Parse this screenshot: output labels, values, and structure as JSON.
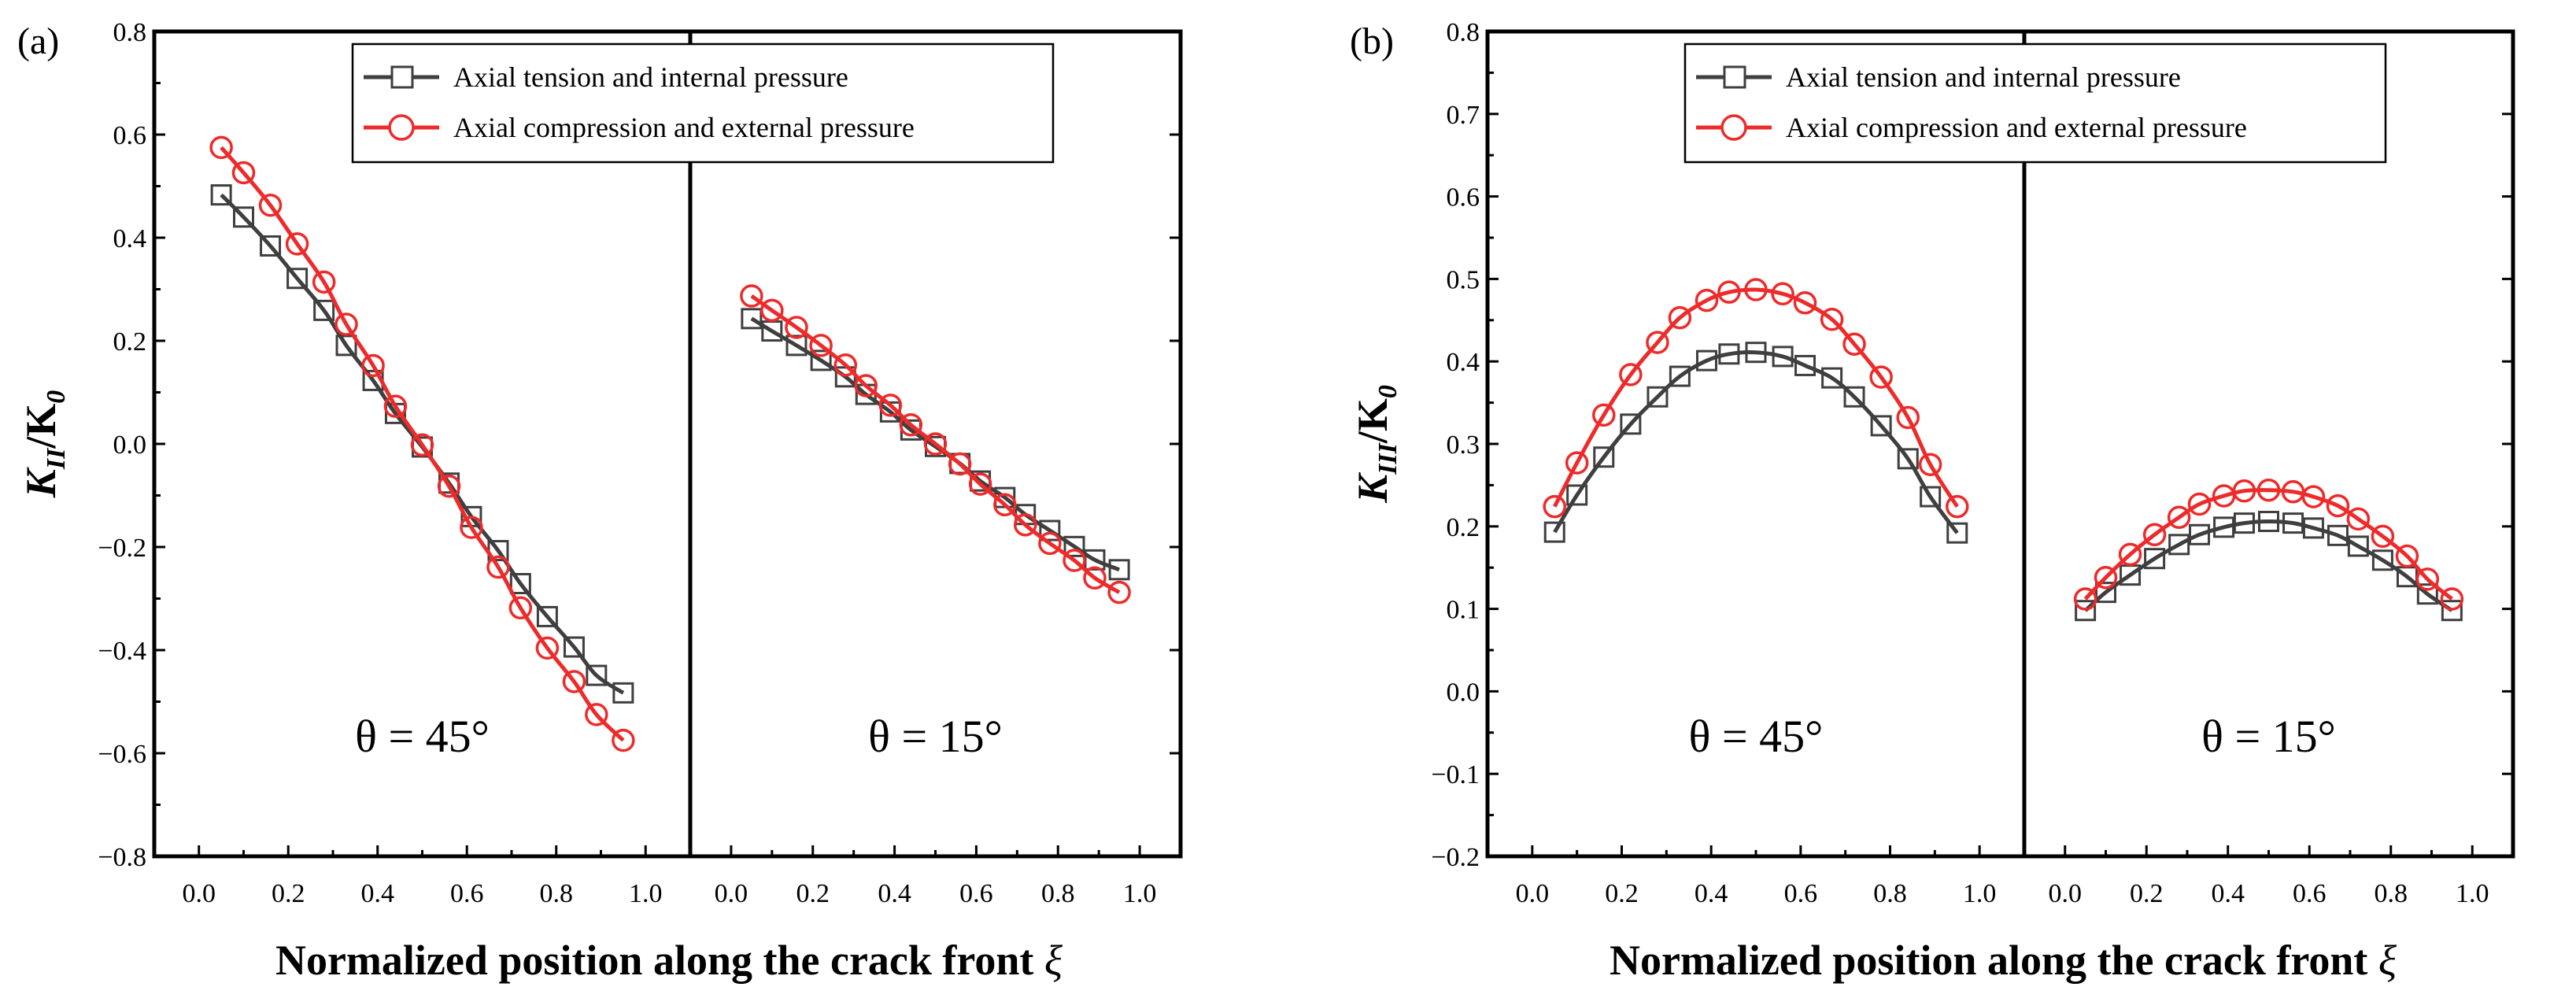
{
  "colors": {
    "series_black": "#3f3f3f",
    "series_red": "#ee2a2a",
    "axis": "#000000"
  },
  "chart_data": [
    {
      "type": "line",
      "panel_label": "(a)",
      "ylabel_main": "K",
      "ylabel_sub": "II",
      "ylabel_rest": "/K",
      "ylabel_sub2": "0",
      "xlabel": "Normalized position along the crack front",
      "xlabel_symbol": "ξ",
      "ylim": [
        -0.8,
        0.8
      ],
      "ytick_step": 0.2,
      "yticks": [
        "−0.8",
        "−0.6",
        "−0.4",
        "−0.2",
        "0.0",
        "0.2",
        "0.4",
        "0.6",
        "0.8"
      ],
      "xticks": [
        "0.0",
        "0.2",
        "0.4",
        "0.6",
        "0.8",
        "1.0"
      ],
      "legend": [
        "Axial tension and internal pressure",
        "Axial compression and external pressure"
      ],
      "legend_location": "top",
      "subplots": [
        {
          "annotation": "θ = 45°",
          "xlim": [
            -0.1,
            1.1
          ],
          "series": [
            {
              "name": "Axial tension and internal pressure",
              "marker": "square",
              "x": [
                0.05,
                0.1,
                0.16,
                0.22,
                0.28,
                0.33,
                0.39,
                0.44,
                0.5,
                0.56,
                0.61,
                0.67,
                0.72,
                0.78,
                0.84,
                0.89,
                0.95
              ],
              "y": [
                0.483,
                0.44,
                0.384,
                0.321,
                0.259,
                0.191,
                0.123,
                0.059,
                -0.006,
                -0.076,
                -0.141,
                -0.207,
                -0.271,
                -0.335,
                -0.394,
                -0.449,
                -0.483
              ]
            },
            {
              "name": "Axial compression and external pressure",
              "marker": "circle",
              "x": [
                0.05,
                0.1,
                0.16,
                0.22,
                0.28,
                0.33,
                0.39,
                0.44,
                0.5,
                0.56,
                0.61,
                0.67,
                0.72,
                0.78,
                0.84,
                0.89,
                0.95
              ],
              "y": [
                0.575,
                0.526,
                0.463,
                0.388,
                0.314,
                0.232,
                0.152,
                0.073,
                -0.002,
                -0.082,
                -0.162,
                -0.239,
                -0.318,
                -0.396,
                -0.461,
                -0.525,
                -0.575
              ]
            }
          ]
        },
        {
          "annotation": "θ = 15°",
          "xlim": [
            -0.1,
            1.1
          ],
          "series": [
            {
              "name": "Axial tension and internal pressure",
              "marker": "square",
              "x": [
                0.05,
                0.1,
                0.16,
                0.22,
                0.28,
                0.33,
                0.39,
                0.44,
                0.5,
                0.56,
                0.61,
                0.67,
                0.72,
                0.78,
                0.84,
                0.89,
                0.95
              ],
              "y": [
                0.243,
                0.219,
                0.191,
                0.162,
                0.13,
                0.096,
                0.062,
                0.027,
                -0.005,
                -0.038,
                -0.072,
                -0.104,
                -0.137,
                -0.168,
                -0.199,
                -0.225,
                -0.244
              ]
            },
            {
              "name": "Axial compression and external pressure",
              "marker": "circle",
              "x": [
                0.05,
                0.1,
                0.16,
                0.22,
                0.28,
                0.33,
                0.39,
                0.44,
                0.5,
                0.56,
                0.61,
                0.67,
                0.72,
                0.78,
                0.84,
                0.89,
                0.95
              ],
              "y": [
                0.287,
                0.259,
                0.226,
                0.191,
                0.153,
                0.113,
                0.075,
                0.037,
                0.0,
                -0.039,
                -0.078,
                -0.118,
                -0.157,
                -0.193,
                -0.226,
                -0.26,
                -0.288
              ]
            }
          ]
        }
      ]
    },
    {
      "type": "line",
      "panel_label": "(b)",
      "ylabel_main": "K",
      "ylabel_sub": "III",
      "ylabel_rest": "/K",
      "ylabel_sub2": "0",
      "xlabel": "Normalized position along the crack front",
      "xlabel_symbol": "ξ",
      "ylim": [
        -0.2,
        0.8
      ],
      "ytick_step": 0.1,
      "yticks": [
        "−0.2",
        "−0.1",
        "0.0",
        "0.1",
        "0.2",
        "0.3",
        "0.4",
        "0.5",
        "0.6",
        "0.7",
        "0.8"
      ],
      "xticks": [
        "0.0",
        "0.2",
        "0.4",
        "0.6",
        "0.8",
        "1.0"
      ],
      "legend": [
        "Axial tension and internal pressure",
        "Axial compression and external pressure"
      ],
      "legend_location": "top",
      "subplots": [
        {
          "annotation": "θ = 45°",
          "xlim": [
            -0.1,
            1.1
          ],
          "series": [
            {
              "name": "Axial tension and internal pressure",
              "marker": "square",
              "x": [
                0.05,
                0.1,
                0.16,
                0.22,
                0.28,
                0.33,
                0.39,
                0.44,
                0.5,
                0.56,
                0.61,
                0.67,
                0.72,
                0.78,
                0.84,
                0.89,
                0.95
              ],
              "y": [
                0.193,
                0.238,
                0.284,
                0.324,
                0.357,
                0.382,
                0.401,
                0.409,
                0.411,
                0.406,
                0.395,
                0.38,
                0.357,
                0.322,
                0.282,
                0.236,
                0.192
              ]
            },
            {
              "name": "Axial compression and external pressure",
              "marker": "circle",
              "x": [
                0.05,
                0.1,
                0.16,
                0.22,
                0.28,
                0.33,
                0.39,
                0.44,
                0.5,
                0.56,
                0.61,
                0.67,
                0.72,
                0.78,
                0.84,
                0.89,
                0.95
              ],
              "y": [
                0.224,
                0.277,
                0.335,
                0.384,
                0.423,
                0.453,
                0.474,
                0.484,
                0.487,
                0.482,
                0.471,
                0.451,
                0.421,
                0.381,
                0.332,
                0.275,
                0.224
              ]
            }
          ]
        },
        {
          "annotation": "θ = 15°",
          "xlim": [
            -0.1,
            1.1
          ],
          "series": [
            {
              "name": "Axial tension and internal pressure",
              "marker": "square",
              "x": [
                0.05,
                0.1,
                0.16,
                0.22,
                0.28,
                0.33,
                0.39,
                0.44,
                0.5,
                0.56,
                0.61,
                0.67,
                0.72,
                0.78,
                0.84,
                0.89,
                0.95
              ],
              "y": [
                0.098,
                0.12,
                0.141,
                0.161,
                0.178,
                0.19,
                0.199,
                0.204,
                0.206,
                0.204,
                0.198,
                0.189,
                0.176,
                0.159,
                0.139,
                0.118,
                0.098
              ]
            },
            {
              "name": "Axial compression and external pressure",
              "marker": "circle",
              "x": [
                0.05,
                0.1,
                0.16,
                0.22,
                0.28,
                0.33,
                0.39,
                0.44,
                0.5,
                0.56,
                0.61,
                0.67,
                0.72,
                0.78,
                0.84,
                0.89,
                0.95
              ],
              "y": [
                0.112,
                0.138,
                0.166,
                0.19,
                0.211,
                0.227,
                0.237,
                0.243,
                0.244,
                0.242,
                0.236,
                0.225,
                0.209,
                0.188,
                0.164,
                0.136,
                0.112
              ]
            }
          ]
        }
      ]
    }
  ]
}
